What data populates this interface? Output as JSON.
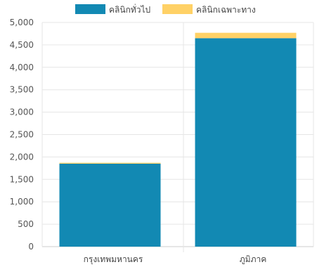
{
  "chart_data": {
    "type": "bar",
    "stacked": true,
    "categories": [
      "กรุงเทพมหานคร",
      "ภูมิภาค"
    ],
    "series": [
      {
        "name": "คลินิกทั่วไป",
        "values": [
          1850,
          4650
        ],
        "color": "#1289b3"
      },
      {
        "name": "คลินิกเฉพาะทาง",
        "values": [
          20,
          120
        ],
        "color": "#ffd166"
      }
    ],
    "ylim": [
      0,
      5000
    ],
    "yticks": [
      "0",
      "500",
      "1,000",
      "1,500",
      "2,000",
      "2,500",
      "3,000",
      "3,500",
      "4,000",
      "4,500",
      "5,000"
    ],
    "grid": true,
    "legend_position": "top"
  }
}
